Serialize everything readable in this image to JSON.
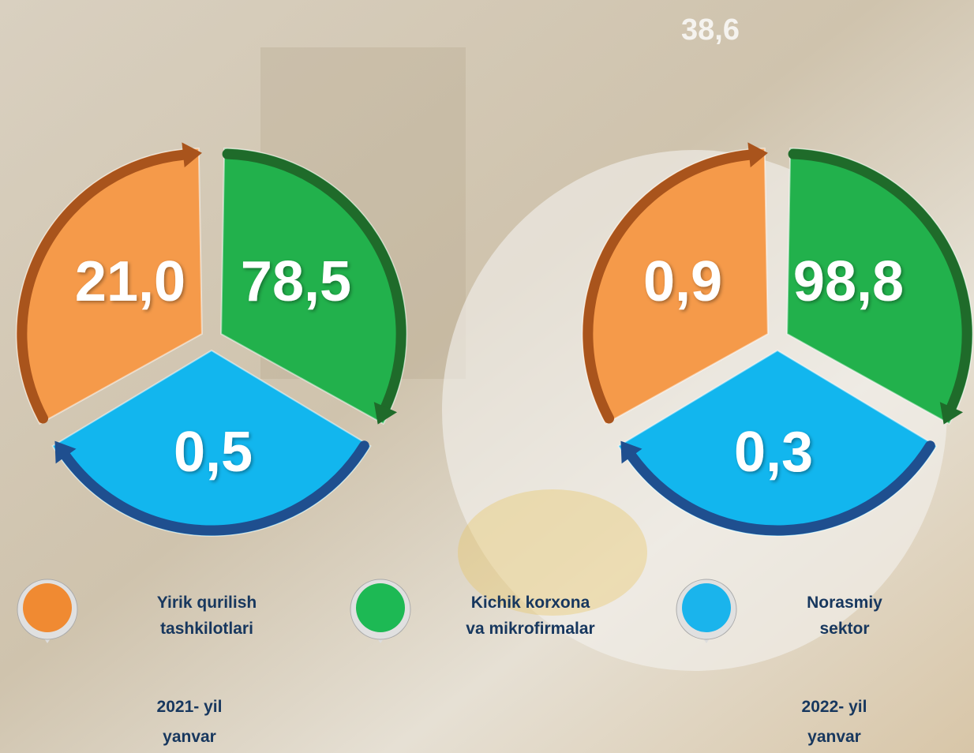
{
  "top_text": "38,6",
  "panels": [
    {
      "segments": [
        "21,0",
        "78,5",
        "0,5"
      ],
      "period": [
        "2021- yil",
        "yanvar"
      ]
    },
    {
      "segments": [
        "0,9",
        "98,8",
        "0,3"
      ],
      "period": [
        "2022- yil",
        "yanvar"
      ]
    }
  ],
  "legend": [
    [
      "Yirik qurilish",
      "tashkilotlari"
    ],
    [
      "Kichik korxona",
      "va mikrofirmalar"
    ],
    [
      "Norasmiy",
      "sektor"
    ]
  ]
}
